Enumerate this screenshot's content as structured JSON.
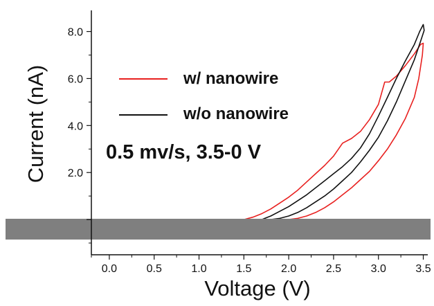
{
  "chart_data": {
    "type": "line",
    "xlabel": "Voltage (V)",
    "ylabel": "Current (nA)",
    "xlim": [
      -0.2,
      3.55
    ],
    "ylim": [
      -1.5,
      8.9
    ],
    "x_ticks": [
      "0.0",
      "0.5",
      "1.0",
      "1.5",
      "2.0",
      "2.5",
      "3.0",
      "3.5"
    ],
    "y_ticks": [
      "2.0",
      "4.0",
      "6.0",
      "8.0"
    ],
    "annotation": "0.5 mv/s, 3.5-0 V",
    "legend_position": "upper-left",
    "grid": false,
    "series": [
      {
        "name": "w/ nanowire",
        "color": "#e8201f",
        "points": [
          [
            1.5,
            0.0
          ],
          [
            1.6,
            0.1
          ],
          [
            1.7,
            0.25
          ],
          [
            1.8,
            0.45
          ],
          [
            1.9,
            0.7
          ],
          [
            2.0,
            0.95
          ],
          [
            2.1,
            1.25
          ],
          [
            2.2,
            1.6
          ],
          [
            2.3,
            1.95
          ],
          [
            2.4,
            2.3
          ],
          [
            2.5,
            2.7
          ],
          [
            2.6,
            3.25
          ],
          [
            2.7,
            3.45
          ],
          [
            2.8,
            3.75
          ],
          [
            2.9,
            4.25
          ],
          [
            3.0,
            4.9
          ],
          [
            3.07,
            5.85
          ],
          [
            3.12,
            5.85
          ],
          [
            3.2,
            6.1
          ],
          [
            3.3,
            6.55
          ],
          [
            3.4,
            7.05
          ],
          [
            3.47,
            7.45
          ],
          [
            3.5,
            7.5
          ],
          [
            3.49,
            7.0
          ],
          [
            3.45,
            6.0
          ],
          [
            3.4,
            5.2
          ],
          [
            3.3,
            4.3
          ],
          [
            3.2,
            3.6
          ],
          [
            3.1,
            3.0
          ],
          [
            3.0,
            2.5
          ],
          [
            2.9,
            2.05
          ],
          [
            2.8,
            1.7
          ],
          [
            2.7,
            1.35
          ],
          [
            2.6,
            1.05
          ],
          [
            2.5,
            0.75
          ],
          [
            2.4,
            0.5
          ],
          [
            2.3,
            0.3
          ],
          [
            2.2,
            0.15
          ],
          [
            2.1,
            0.05
          ],
          [
            2.0,
            0.0
          ]
        ]
      },
      {
        "name": "w/o nanowire",
        "color": "#111111",
        "points": [
          [
            1.7,
            0.0
          ],
          [
            1.8,
            0.15
          ],
          [
            1.9,
            0.35
          ],
          [
            2.0,
            0.55
          ],
          [
            2.1,
            0.8
          ],
          [
            2.2,
            1.05
          ],
          [
            2.3,
            1.35
          ],
          [
            2.4,
            1.65
          ],
          [
            2.5,
            1.95
          ],
          [
            2.6,
            2.25
          ],
          [
            2.7,
            2.6
          ],
          [
            2.8,
            3.05
          ],
          [
            2.9,
            3.65
          ],
          [
            3.0,
            4.4
          ],
          [
            3.1,
            5.2
          ],
          [
            3.2,
            6.0
          ],
          [
            3.3,
            6.75
          ],
          [
            3.4,
            7.45
          ],
          [
            3.46,
            8.0
          ],
          [
            3.5,
            8.3
          ],
          [
            3.51,
            8.05
          ],
          [
            3.48,
            7.7
          ],
          [
            3.4,
            6.8
          ],
          [
            3.3,
            5.9
          ],
          [
            3.2,
            5.0
          ],
          [
            3.1,
            4.2
          ],
          [
            3.0,
            3.5
          ],
          [
            2.9,
            2.95
          ],
          [
            2.8,
            2.45
          ],
          [
            2.7,
            2.0
          ],
          [
            2.6,
            1.65
          ],
          [
            2.5,
            1.3
          ],
          [
            2.4,
            1.0
          ],
          [
            2.3,
            0.75
          ],
          [
            2.2,
            0.5
          ],
          [
            2.1,
            0.3
          ],
          [
            2.0,
            0.15
          ],
          [
            1.9,
            0.05
          ],
          [
            1.8,
            0.0
          ]
        ]
      }
    ]
  }
}
